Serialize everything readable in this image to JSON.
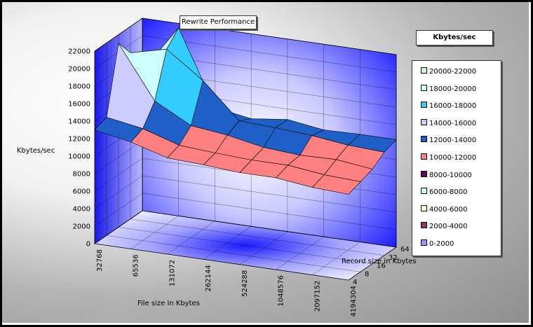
{
  "chart_data": {
    "type": "surface3d",
    "title": "Rewrite Performance",
    "ylabel": "Kbytes/sec",
    "xlabel": "File size in Kbytes",
    "zlabel": "Record size in Kbytes",
    "ylim": [
      0,
      22000
    ],
    "y_ticks": [
      "0",
      "2000",
      "4000",
      "6000",
      "8000",
      "10000",
      "12000",
      "14000",
      "16000",
      "18000",
      "20000",
      "22000"
    ],
    "x_categories": [
      "32768",
      "65536",
      "131072",
      "262144",
      "524288",
      "1048576",
      "2097152",
      "4194304"
    ],
    "depth_categories": [
      "4",
      "8",
      "16",
      "32",
      "64"
    ],
    "surface": [
      [
        13000,
        12200,
        11000,
        10800,
        10500,
        10500,
        10000,
        9800
      ],
      [
        13500,
        12800,
        11500,
        11200,
        11000,
        11000,
        10500,
        10300
      ],
      [
        21000,
        15000,
        12800,
        12300,
        11500,
        11200,
        11300,
        10800
      ],
      [
        19000,
        20000,
        17000,
        13000,
        12800,
        12500,
        12000,
        11800
      ],
      [
        16000,
        21500,
        13000,
        12300,
        12800,
        12200,
        12300,
        12300
      ]
    ],
    "legend_title": "Kbytes/sec",
    "legend": [
      {
        "label": "20000-22000",
        "color": "#ccffcc"
      },
      {
        "label": "18000-20000",
        "color": "#ccffff"
      },
      {
        "label": "16000-18000",
        "color": "#33ccff"
      },
      {
        "label": "14000-16000",
        "color": "#ccccff"
      },
      {
        "label": "12000-14000",
        "color": "#1f60c8"
      },
      {
        "label": "10000-12000",
        "color": "#ff8080"
      },
      {
        "label": "8000-10000",
        "color": "#660066"
      },
      {
        "label": "6000-8000",
        "color": "#ccffff"
      },
      {
        "label": "4000-6000",
        "color": "#ffffcc"
      },
      {
        "label": "2000-4000",
        "color": "#993366"
      },
      {
        "label": "0-2000",
        "color": "#9999ff"
      }
    ],
    "wall_color": "#1a1aff"
  }
}
